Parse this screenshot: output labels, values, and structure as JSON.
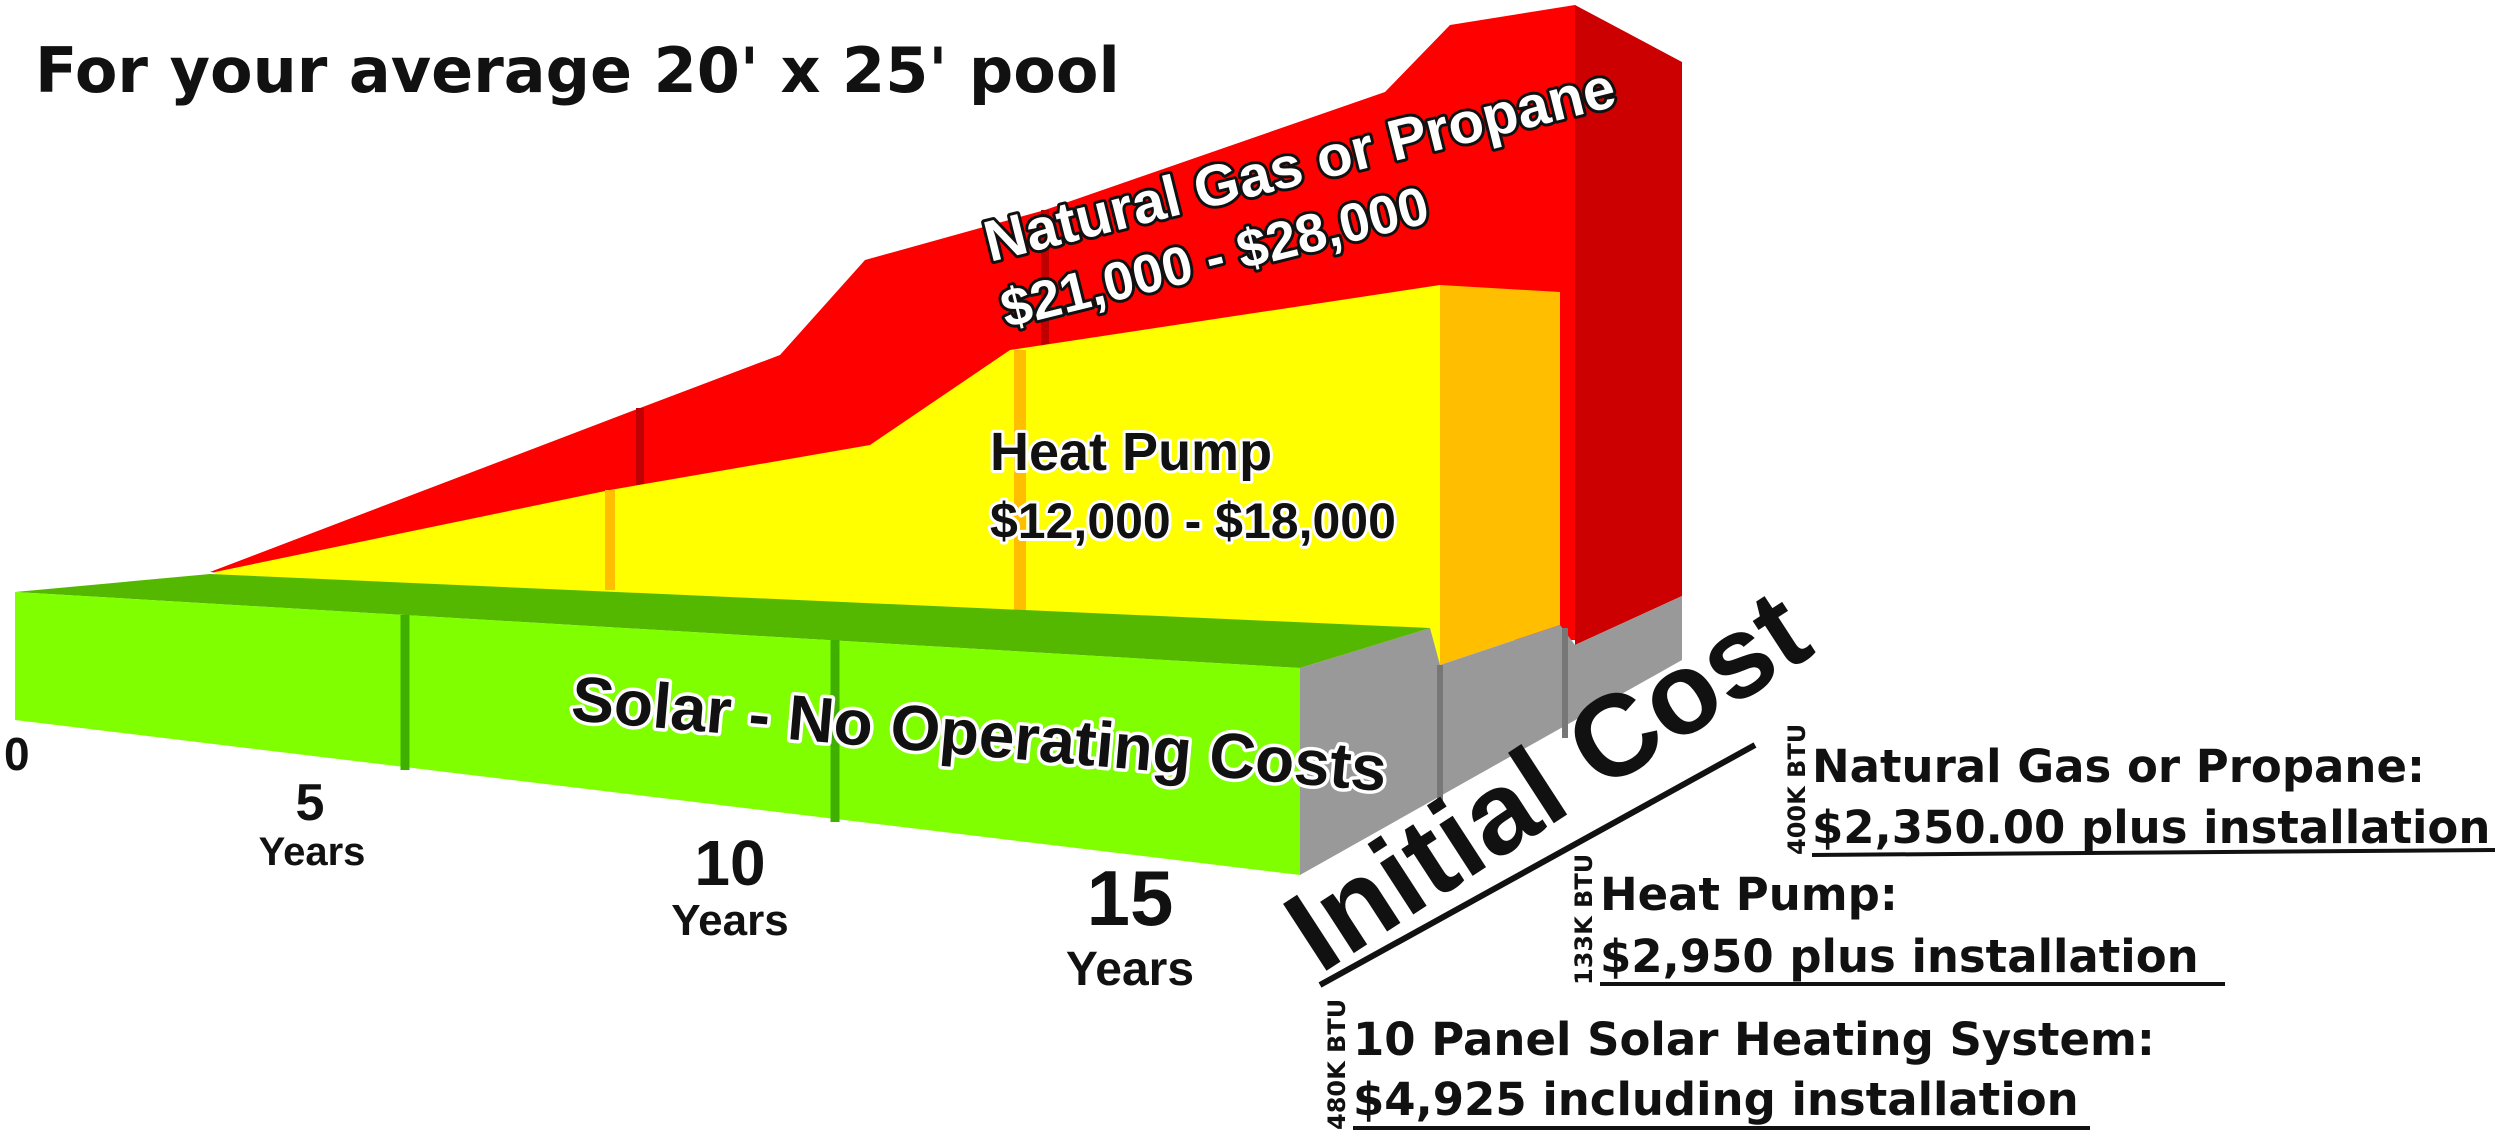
{
  "chart_data": {
    "type": "area",
    "title": "For your average 20' x 25' pool",
    "x_ticks": [
      {
        "value": "0",
        "unit": ""
      },
      {
        "value": "5",
        "unit": "Years"
      },
      {
        "value": "10",
        "unit": "Years"
      },
      {
        "value": "15",
        "unit": "Years"
      }
    ],
    "x": [
      0,
      5,
      10,
      15
    ],
    "series": [
      {
        "name": "Natural Gas or Propane",
        "range_label": "$21,000 - $28,000",
        "cumulative_cost_range": [
          21000,
          28000
        ],
        "color": "#ff0000"
      },
      {
        "name": "Heat Pump",
        "range_label": "$12,000 - $18,000",
        "cumulative_cost_range": [
          12000,
          18000
        ],
        "color": "#ffff00"
      },
      {
        "name": "Solar - No Operating Costs",
        "cumulative_cost_range": [
          0,
          0
        ],
        "color": "#80ff00"
      }
    ],
    "initial_cost_label": "Initial Cost",
    "initial_costs": [
      {
        "btu": "400K BTU",
        "name": "Natural Gas or Propane:",
        "price": "$2,350.00 plus installation"
      },
      {
        "btu": "133K BTU",
        "name": "Heat Pump:",
        "price": "$2,950  plus installation"
      },
      {
        "btu": "480K BTU",
        "name": "10 Panel Solar Heating System:",
        "price": "$4,925 including installation"
      }
    ]
  }
}
